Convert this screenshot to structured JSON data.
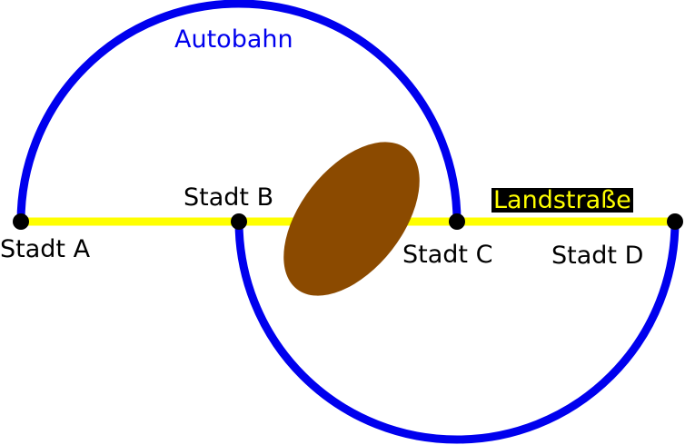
{
  "labels": {
    "autobahn": "Autobahn",
    "landstrasse": "Landstraße"
  },
  "cities": {
    "a": "Stadt A",
    "b": "Stadt B",
    "c": "Stadt C",
    "d": "Stadt D"
  },
  "colors": {
    "autobahn": "#0000ee",
    "landstrasse": "#ffff00",
    "landstrasse_label_bg": "#000000",
    "obstacle": "#8b4a00",
    "city_dot": "#000000"
  }
}
